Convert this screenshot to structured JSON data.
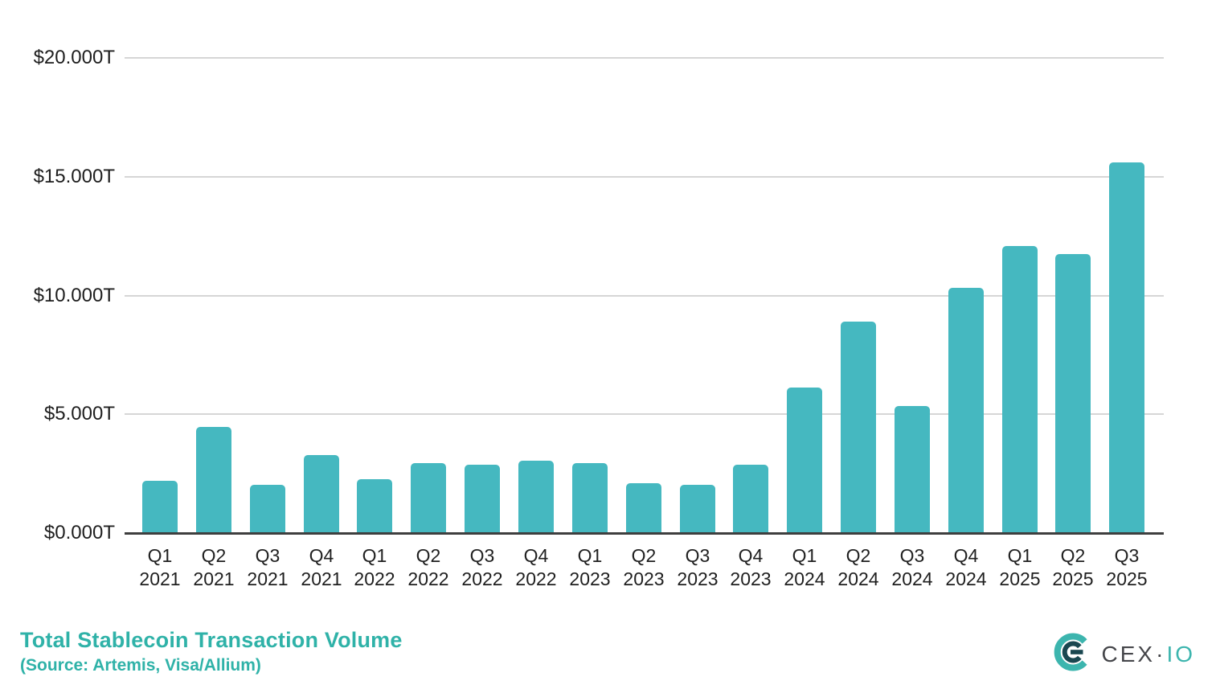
{
  "chart_data": {
    "type": "bar",
    "title": "Total Stablecoin Transaction Volume",
    "subtitle": "(Source: Artemis, Visa/Allium)",
    "unit": "USD trillions per quarter",
    "categories": [
      {
        "quarter": "Q1",
        "year": "2021"
      },
      {
        "quarter": "Q2",
        "year": "2021"
      },
      {
        "quarter": "Q3",
        "year": "2021"
      },
      {
        "quarter": "Q4",
        "year": "2021"
      },
      {
        "quarter": "Q1",
        "year": "2022"
      },
      {
        "quarter": "Q2",
        "year": "2022"
      },
      {
        "quarter": "Q3",
        "year": "2022"
      },
      {
        "quarter": "Q4",
        "year": "2022"
      },
      {
        "quarter": "Q1",
        "year": "2023"
      },
      {
        "quarter": "Q2",
        "year": "2023"
      },
      {
        "quarter": "Q3",
        "year": "2023"
      },
      {
        "quarter": "Q4",
        "year": "2023"
      },
      {
        "quarter": "Q1",
        "year": "2024"
      },
      {
        "quarter": "Q2",
        "year": "2024"
      },
      {
        "quarter": "Q3",
        "year": "2024"
      },
      {
        "quarter": "Q4",
        "year": "2024"
      },
      {
        "quarter": "Q1",
        "year": "2025"
      },
      {
        "quarter": "Q2",
        "year": "2025"
      },
      {
        "quarter": "Q3",
        "year": "2025"
      }
    ],
    "values": [
      2.15,
      4.45,
      2.0,
      3.25,
      2.25,
      2.9,
      2.85,
      3.0,
      2.9,
      2.05,
      2.0,
      2.85,
      6.1,
      8.85,
      5.3,
      10.3,
      12.05,
      11.7,
      15.55
    ],
    "yticks": [
      {
        "value": 20,
        "label": "$20.000T"
      },
      {
        "value": 15,
        "label": "$15.000T"
      },
      {
        "value": 10,
        "label": "$10.000T"
      },
      {
        "value": 5,
        "label": "$5.000T"
      },
      {
        "value": 0,
        "label": "$0.000T"
      }
    ],
    "ylim": [
      0,
      21.5
    ],
    "grid": true,
    "legend": "none",
    "bar_color": "#45b8c0",
    "grid_color": "#d6d6d6",
    "axis_color": "#3e3e3e",
    "title_color": "#2fb2a8"
  },
  "branding": {
    "logo_text_primary": "CEX",
    "logo_separator": "·",
    "logo_text_secondary": "IO"
  }
}
